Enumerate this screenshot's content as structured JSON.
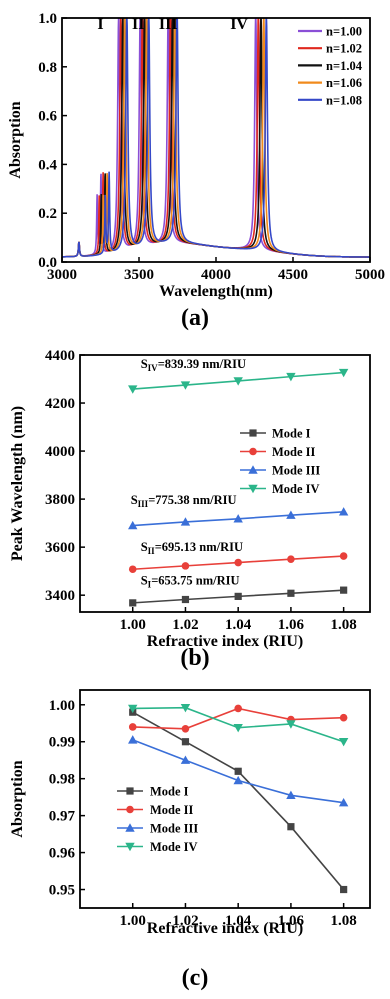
{
  "chart_data": [
    {
      "panel": "a",
      "type": "line",
      "caption": "(a)",
      "xlabel": "Wavelength(nm)",
      "ylabel": "Absorption",
      "xlim": [
        3000,
        5000
      ],
      "ylim": [
        0,
        1.0
      ],
      "xticks": [
        3000,
        3500,
        4000,
        4500,
        5000
      ],
      "yticks": [
        0.0,
        0.2,
        0.4,
        0.6,
        0.8,
        1.0
      ],
      "mode_labels": [
        "I",
        "II",
        "III",
        "IV"
      ],
      "legend_position": "top-right",
      "series": [
        {
          "name": "n=1.00",
          "color": "#8a4fd6",
          "peaks": [
            3368,
            3508,
            3690,
            4258
          ]
        },
        {
          "name": "n=1.02",
          "color": "#e0281e",
          "peaks": [
            3382,
            3522,
            3705,
            4275
          ]
        },
        {
          "name": "n=1.04",
          "color": "#111111",
          "peaks": [
            3395,
            3536,
            3718,
            4292
          ]
        },
        {
          "name": "n=1.06",
          "color": "#f08a1c",
          "peaks": [
            3408,
            3550,
            3733,
            4310
          ]
        },
        {
          "name": "n=1.08",
          "color": "#3548c8",
          "peaks": [
            3421,
            3563,
            3747,
            4327
          ]
        }
      ]
    },
    {
      "panel": "b",
      "type": "line",
      "caption": "(b)",
      "xlabel": "Refractive index (RIU)",
      "ylabel": "Peak Wavelength (nm)",
      "x": [
        1.0,
        1.02,
        1.04,
        1.06,
        1.08
      ],
      "xlim": [
        0.98,
        1.09
      ],
      "ylim": [
        3330,
        4400
      ],
      "yticks": [
        3400,
        3600,
        3800,
        4000,
        4200,
        4400
      ],
      "legend_position": "right-middle",
      "series": [
        {
          "name": "Mode I",
          "color": "#444444",
          "marker": "square",
          "values": [
            3368,
            3382,
            3395,
            3408,
            3421
          ]
        },
        {
          "name": "Mode II",
          "color": "#e8403a",
          "marker": "circle",
          "values": [
            3508,
            3522,
            3536,
            3550,
            3563
          ]
        },
        {
          "name": "Mode III",
          "color": "#3a6fd8",
          "marker": "triangle-up",
          "values": [
            3690,
            3705,
            3718,
            3733,
            3747
          ]
        },
        {
          "name": "Mode IV",
          "color": "#2bb58a",
          "marker": "triangle-down",
          "values": [
            4258,
            4275,
            4292,
            4310,
            4327
          ]
        }
      ],
      "annotations": [
        {
          "base": "S",
          "sub": "IV",
          "rest": "=839.39 nm/RIU"
        },
        {
          "base": "S",
          "sub": "III",
          "rest": "=775.38 nm/RIU"
        },
        {
          "base": "S",
          "sub": "II",
          "rest": "=695.13 nm/RIU"
        },
        {
          "base": "S",
          "sub": "I",
          "rest": "=653.75 nm/RIU"
        }
      ]
    },
    {
      "panel": "c",
      "type": "line",
      "caption": "(c)",
      "xlabel": "Refractive index (RIU)",
      "ylabel": "Absorption",
      "x": [
        1.0,
        1.02,
        1.04,
        1.06,
        1.08
      ],
      "xlim": [
        0.98,
        1.09
      ],
      "ylim": [
        0.945,
        1.004
      ],
      "yticks": [
        0.95,
        0.96,
        0.97,
        0.98,
        0.99,
        1.0
      ],
      "legend_position": "bottom-left",
      "series": [
        {
          "name": "Mode I",
          "color": "#444444",
          "marker": "square",
          "values": [
            0.998,
            0.99,
            0.982,
            0.967,
            0.95
          ]
        },
        {
          "name": "Mode II",
          "color": "#e8403a",
          "marker": "circle",
          "values": [
            0.994,
            0.9935,
            0.999,
            0.996,
            0.9965
          ]
        },
        {
          "name": "Mode III",
          "color": "#3a6fd8",
          "marker": "triangle-up",
          "values": [
            0.9905,
            0.985,
            0.9795,
            0.9755,
            0.9735
          ]
        },
        {
          "name": "Mode IV",
          "color": "#2bb58a",
          "marker": "triangle-down",
          "values": [
            0.999,
            0.9992,
            0.9938,
            0.9948,
            0.99
          ]
        }
      ]
    }
  ]
}
